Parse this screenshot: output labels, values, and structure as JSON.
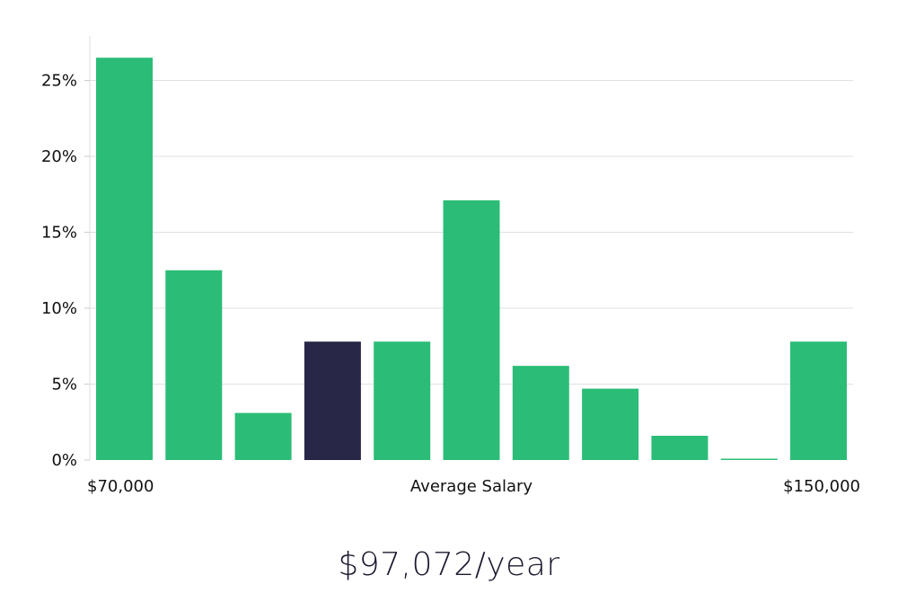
{
  "chart_data": {
    "type": "bar",
    "title": "",
    "xlabel": "Average Salary",
    "ylabel": "",
    "x_start_label": "$70,000",
    "x_end_label": "$150,000",
    "categories": [
      "1",
      "2",
      "3",
      "4",
      "5",
      "6",
      "7",
      "8",
      "9",
      "10",
      "11"
    ],
    "values": [
      26.5,
      12.5,
      3.1,
      7.8,
      7.8,
      17.1,
      6.2,
      4.7,
      1.6,
      0.05,
      7.8
    ],
    "highlight_index": 3,
    "ylim": [
      0,
      28
    ],
    "yticks": [
      0,
      5,
      10,
      15,
      20,
      25
    ],
    "ytick_labels": [
      "0%",
      "5%",
      "10%",
      "15%",
      "20%",
      "25%"
    ],
    "grid": true,
    "colors": {
      "bar": "#2bbd77",
      "highlight": "#292747",
      "grid": "#e0e0e0",
      "axis": "#dddddd"
    }
  },
  "summary": {
    "salary": "$97,072/year"
  }
}
